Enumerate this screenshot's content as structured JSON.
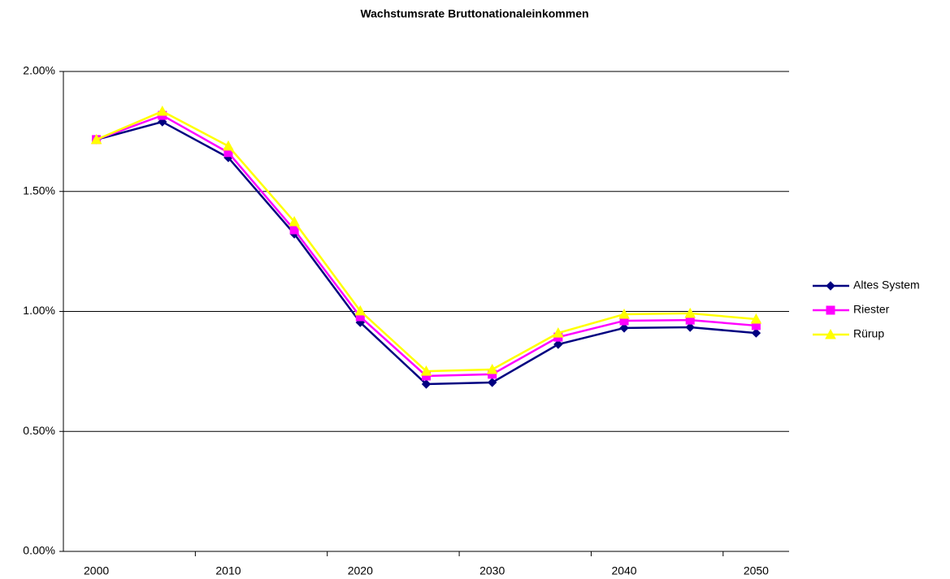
{
  "chart_data": {
    "type": "line",
    "title": "Wachstumsrate Bruttonationaleinkommen",
    "categories": [
      "2000",
      null,
      "2010",
      null,
      "2020",
      null,
      "2030",
      null,
      "2040",
      null,
      "2050"
    ],
    "series": [
      {
        "name": "Altes System",
        "color": "#000080",
        "marker": "diamond",
        "values": [
          1.716,
          1.79,
          1.641,
          1.323,
          0.954,
          0.697,
          0.704,
          0.863,
          0.931,
          0.934,
          0.91
        ]
      },
      {
        "name": "Riester",
        "color": "#ff00ff",
        "marker": "square",
        "values": [
          1.716,
          1.817,
          1.662,
          1.34,
          0.978,
          0.731,
          0.738,
          0.893,
          0.961,
          0.964,
          0.941
        ]
      },
      {
        "name": "Rürup",
        "color": "#ffff00",
        "marker": "triangle",
        "values": [
          1.716,
          1.834,
          1.689,
          1.374,
          1.002,
          0.751,
          0.758,
          0.91,
          0.988,
          0.992,
          0.968
        ]
      }
    ],
    "ylim": [
      0,
      2
    ],
    "yticks": [
      {
        "value": 0,
        "label": "0.00%"
      },
      {
        "value": 0.5,
        "label": "0.50%"
      },
      {
        "value": 1,
        "label": "1.00%"
      },
      {
        "value": 1.5,
        "label": "1.50%"
      },
      {
        "value": 2,
        "label": "2.00%"
      }
    ],
    "grid": true,
    "legend": "right"
  }
}
